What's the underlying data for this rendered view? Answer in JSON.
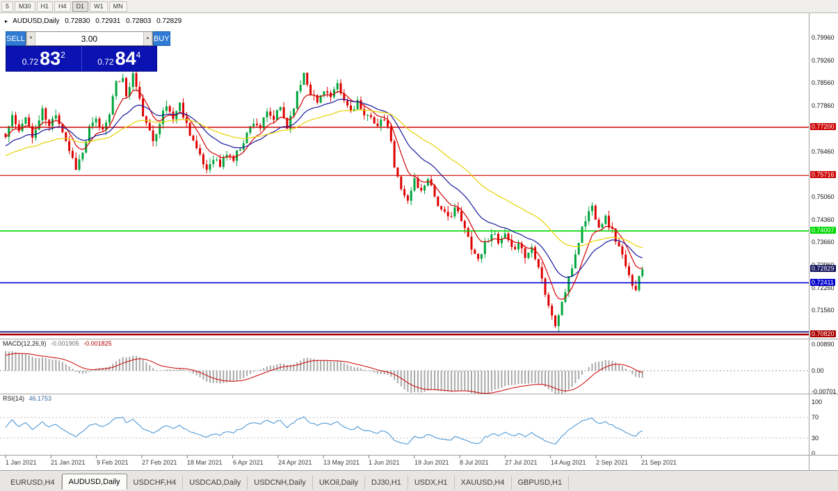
{
  "toolbar": {
    "timeframes": [
      "5",
      "M30",
      "H1",
      "H4",
      "D1",
      "W1",
      "MN"
    ],
    "active": "D1"
  },
  "chart_header": {
    "marker": "▸",
    "symbol": "AUDUSD,Daily",
    "open": "0.72830",
    "high": "0.72931",
    "low": "0.72803",
    "close": "0.72829"
  },
  "trade_panel": {
    "sell_label": "SELL",
    "buy_label": "BUY",
    "volume": "3.00",
    "sell_price": {
      "prefix": "0.72",
      "big": "83",
      "pip": "2"
    },
    "buy_price": {
      "prefix": "0.72",
      "big": "84",
      "pip": "4"
    }
  },
  "macd_panel": {
    "label": "MACD(12,26,9)",
    "value": "-0.001905",
    "signal_value": "-0.001825",
    "scale": [
      "0.00890",
      "0.00",
      "-0.00701"
    ]
  },
  "rsi_panel": {
    "label": "RSI(14)",
    "value": "46.1753",
    "scale": [
      "100",
      "70",
      "30",
      "0"
    ]
  },
  "tabs": {
    "items": [
      "EURUSD,H4",
      "AUDUSD,Daily",
      "USDCHF,H4",
      "USDCAD,Daily",
      "USDCNH,Daily",
      "UKOil,Daily",
      "DJ30,H1",
      "USDX,H1",
      "XAUUSD,H4",
      "GBPUSD,H1"
    ],
    "active_index": 1
  },
  "chart_data": {
    "type": "candlestick",
    "symbol": "AUDUSD",
    "timeframe": "Daily",
    "title": "AUDUSD,Daily",
    "x_labels": [
      "1 Jan 2021",
      "21 Jan 2021",
      "9 Feb 2021",
      "27 Feb 2021",
      "18 Mar 2021",
      "6 Apr 2021",
      "24 Apr 2021",
      "13 May 2021",
      "1 Jun 2021",
      "19 Jun 2021",
      "8 Jul 2021",
      "27 Jul 2021",
      "14 Aug 2021",
      "2 Sep 2021",
      "21 Sep 2021"
    ],
    "y_ticks": [
      "0.79960",
      "0.79260",
      "0.78560",
      "0.77860",
      "0.77160",
      "0.76460",
      "0.75760",
      "0.75060",
      "0.74360",
      "0.73660",
      "0.72960",
      "0.72260",
      "0.71560",
      "0.70860"
    ],
    "y_range": [
      0.706,
      0.807
    ],
    "candle_count": 191,
    "close_anchors": [
      [
        0,
        0.769
      ],
      [
        2,
        0.7755
      ],
      [
        4,
        0.77
      ],
      [
        6,
        0.776
      ],
      [
        8,
        0.7685
      ],
      [
        11,
        0.777
      ],
      [
        13,
        0.772
      ],
      [
        15,
        0.7765
      ],
      [
        17,
        0.771
      ],
      [
        19,
        0.765
      ],
      [
        21,
        0.7598
      ],
      [
        23,
        0.764
      ],
      [
        25,
        0.7715
      ],
      [
        27,
        0.774
      ],
      [
        29,
        0.771
      ],
      [
        31,
        0.777
      ],
      [
        33,
        0.785
      ],
      [
        35,
        0.788
      ],
      [
        36,
        0.781
      ],
      [
        38,
        0.7885
      ],
      [
        40,
        0.78
      ],
      [
        42,
        0.7725
      ],
      [
        44,
        0.768
      ],
      [
        46,
        0.774
      ],
      [
        48,
        0.7785
      ],
      [
        50,
        0.775
      ],
      [
        52,
        0.779
      ],
      [
        54,
        0.773
      ],
      [
        56,
        0.768
      ],
      [
        58,
        0.7625
      ],
      [
        60,
        0.759
      ],
      [
        62,
        0.763
      ],
      [
        64,
        0.76
      ],
      [
        66,
        0.764
      ],
      [
        68,
        0.762
      ],
      [
        70,
        0.766
      ],
      [
        72,
        0.77
      ],
      [
        74,
        0.774
      ],
      [
        76,
        0.772
      ],
      [
        78,
        0.776
      ],
      [
        80,
        0.7745
      ],
      [
        82,
        0.778
      ],
      [
        84,
        0.772
      ],
      [
        86,
        0.779
      ],
      [
        88,
        0.7855
      ],
      [
        89,
        0.789
      ],
      [
        91,
        0.783
      ],
      [
        93,
        0.7795
      ],
      [
        95,
        0.784
      ],
      [
        97,
        0.781
      ],
      [
        99,
        0.7845
      ],
      [
        101,
        0.78
      ],
      [
        103,
        0.777
      ],
      [
        105,
        0.78
      ],
      [
        107,
        0.7745
      ],
      [
        109,
        0.776
      ],
      [
        111,
        0.772
      ],
      [
        113,
        0.7745
      ],
      [
        115,
        0.768
      ],
      [
        116,
        0.759
      ],
      [
        118,
        0.754
      ],
      [
        120,
        0.749
      ],
      [
        122,
        0.756
      ],
      [
        124,
        0.752
      ],
      [
        126,
        0.757
      ],
      [
        128,
        0.751
      ],
      [
        130,
        0.746
      ],
      [
        132,
        0.744
      ],
      [
        134,
        0.7475
      ],
      [
        136,
        0.743
      ],
      [
        138,
        0.738
      ],
      [
        140,
        0.733
      ],
      [
        141,
        0.7315
      ],
      [
        143,
        0.736
      ],
      [
        145,
        0.74
      ],
      [
        147,
        0.736
      ],
      [
        149,
        0.7385
      ],
      [
        151,
        0.734
      ],
      [
        153,
        0.737
      ],
      [
        155,
        0.732
      ],
      [
        157,
        0.735
      ],
      [
        159,
        0.73
      ],
      [
        161,
        0.721
      ],
      [
        163,
        0.7135
      ],
      [
        164,
        0.711
      ],
      [
        166,
        0.718
      ],
      [
        168,
        0.725
      ],
      [
        170,
        0.733
      ],
      [
        172,
        0.741
      ],
      [
        174,
        0.746
      ],
      [
        175,
        0.7475
      ],
      [
        177,
        0.742
      ],
      [
        179,
        0.744
      ],
      [
        181,
        0.74
      ],
      [
        183,
        0.735
      ],
      [
        185,
        0.729
      ],
      [
        187,
        0.7235
      ],
      [
        188,
        0.7222
      ],
      [
        189,
        0.726
      ],
      [
        190,
        0.72829
      ]
    ],
    "noise_amp": 0.0012,
    "wick_amp": 0.0018,
    "seed": 11,
    "up_color": "#00a53c",
    "down_color": "#dd0000",
    "moving_averages": [
      {
        "name": "fast-ma",
        "period": 8,
        "color": "#d40000",
        "seed": 0.769
      },
      {
        "name": "mid-ma",
        "period": 20,
        "color": "#1717a0",
        "seed": 0.766
      },
      {
        "name": "slow-ma",
        "period": 45,
        "color": "#e8d200",
        "seed": 0.763
      }
    ],
    "h_lines": [
      {
        "price": 0.772,
        "label": "0.77200",
        "color": "#cc0000",
        "width": 1.6
      },
      {
        "price": 0.75716,
        "label": "0.75716",
        "color": "#cc0000",
        "width": 1.2
      },
      {
        "price": 0.74007,
        "label": "0.74007",
        "color": "#00d800",
        "width": 1.6
      },
      {
        "price": 0.72411,
        "label": "0.72411",
        "color": "#0000cc",
        "width": 1.6
      },
      {
        "price": 0.709,
        "label": "",
        "color": "#000080",
        "width": 1.6
      },
      {
        "price": 0.7082,
        "label": "0.70820",
        "color": "#aa0000",
        "width": 2.6
      }
    ],
    "current_price": {
      "value": 0.72829,
      "label": "0.72829",
      "label_color": "#15155e"
    },
    "macd": {
      "fast": 12,
      "slow": 26,
      "signal": 9,
      "histogram_color": "#a8a8a8",
      "signal_color": "#cc0000",
      "seeds": {
        "ema_fast": 0.768,
        "ema_slow": 0.7615,
        "signal": 0.0045
      },
      "last_value": -0.001905,
      "last_signal": -0.001825
    },
    "rsi": {
      "period": 14,
      "color": "#3f8fd2",
      "levels": [
        70,
        30
      ],
      "last_value": 46.1753
    }
  }
}
